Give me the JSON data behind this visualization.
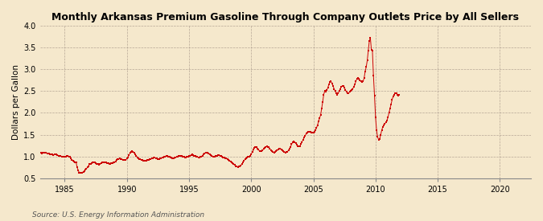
{
  "title": "Monthly Arkansas Premium Gasoline Through Company Outlets Price by All Sellers",
  "ylabel": "Dollars per Gallon",
  "source": "Source: U.S. Energy Information Administration",
  "background_color": "#f5e8cc",
  "line_color": "#cc0000",
  "ylim": [
    0.5,
    4.0
  ],
  "xlim_start": 1983.0,
  "xlim_end": 2022.5,
  "yticks": [
    0.5,
    1.0,
    1.5,
    2.0,
    2.5,
    3.0,
    3.5,
    4.0
  ],
  "xticks": [
    1985,
    1990,
    1995,
    2000,
    2005,
    2010,
    2015,
    2020
  ],
  "prices": [
    1.09,
    1.08,
    1.07,
    1.08,
    1.09,
    1.09,
    1.08,
    1.07,
    1.07,
    1.06,
    1.05,
    1.04,
    1.04,
    1.03,
    1.04,
    1.05,
    1.04,
    1.03,
    1.02,
    1.01,
    1.01,
    1.0,
    1.0,
    0.99,
    1.0,
    1.0,
    1.01,
    1.01,
    1.0,
    0.99,
    0.95,
    0.92,
    0.9,
    0.88,
    0.87,
    0.86,
    0.75,
    0.68,
    0.63,
    0.62,
    0.62,
    0.63,
    0.65,
    0.67,
    0.7,
    0.72,
    0.75,
    0.78,
    0.82,
    0.83,
    0.85,
    0.86,
    0.86,
    0.86,
    0.85,
    0.83,
    0.82,
    0.81,
    0.82,
    0.84,
    0.86,
    0.87,
    0.87,
    0.87,
    0.86,
    0.85,
    0.84,
    0.83,
    0.83,
    0.84,
    0.85,
    0.86,
    0.87,
    0.89,
    0.91,
    0.93,
    0.94,
    0.95,
    0.94,
    0.93,
    0.92,
    0.91,
    0.91,
    0.92,
    0.95,
    0.98,
    1.03,
    1.08,
    1.1,
    1.12,
    1.1,
    1.08,
    1.05,
    1.02,
    0.98,
    0.95,
    0.94,
    0.93,
    0.92,
    0.91,
    0.9,
    0.9,
    0.9,
    0.9,
    0.91,
    0.92,
    0.93,
    0.94,
    0.95,
    0.96,
    0.97,
    0.97,
    0.96,
    0.95,
    0.94,
    0.94,
    0.95,
    0.96,
    0.97,
    0.98,
    0.99,
    1.0,
    1.01,
    1.01,
    1.0,
    0.99,
    0.98,
    0.97,
    0.96,
    0.96,
    0.97,
    0.98,
    0.99,
    1.0,
    1.01,
    1.02,
    1.02,
    1.01,
    1.0,
    0.99,
    0.98,
    0.98,
    0.99,
    1.0,
    1.01,
    1.02,
    1.03,
    1.04,
    1.03,
    1.02,
    1.01,
    1.0,
    0.99,
    0.98,
    0.98,
    0.99,
    1.0,
    1.02,
    1.05,
    1.07,
    1.08,
    1.09,
    1.08,
    1.07,
    1.05,
    1.03,
    1.01,
    1.0,
    1.0,
    1.0,
    1.01,
    1.02,
    1.03,
    1.03,
    1.02,
    1.01,
    0.99,
    0.98,
    0.97,
    0.96,
    0.95,
    0.94,
    0.92,
    0.9,
    0.88,
    0.86,
    0.84,
    0.82,
    0.8,
    0.78,
    0.77,
    0.76,
    0.77,
    0.77,
    0.79,
    0.82,
    0.86,
    0.9,
    0.93,
    0.95,
    0.97,
    0.99,
    1.0,
    1.01,
    1.05,
    1.1,
    1.15,
    1.2,
    1.22,
    1.21,
    1.18,
    1.15,
    1.13,
    1.12,
    1.13,
    1.14,
    1.17,
    1.2,
    1.22,
    1.23,
    1.22,
    1.21,
    1.18,
    1.14,
    1.12,
    1.1,
    1.09,
    1.1,
    1.12,
    1.14,
    1.16,
    1.17,
    1.17,
    1.16,
    1.14,
    1.12,
    1.1,
    1.09,
    1.1,
    1.11,
    1.14,
    1.17,
    1.22,
    1.28,
    1.32,
    1.35,
    1.33,
    1.3,
    1.27,
    1.24,
    1.23,
    1.24,
    1.28,
    1.33,
    1.38,
    1.43,
    1.47,
    1.52,
    1.55,
    1.57,
    1.57,
    1.56,
    1.55,
    1.54,
    1.55,
    1.57,
    1.6,
    1.65,
    1.72,
    1.8,
    1.88,
    1.95,
    2.1,
    2.25,
    2.42,
    2.5,
    2.48,
    2.52,
    2.58,
    2.65,
    2.7,
    2.72,
    2.68,
    2.62,
    2.55,
    2.5,
    2.45,
    2.42,
    2.45,
    2.5,
    2.55,
    2.6,
    2.62,
    2.62,
    2.58,
    2.52,
    2.48,
    2.45,
    2.45,
    2.48,
    2.5,
    2.52,
    2.55,
    2.6,
    2.65,
    2.72,
    2.78,
    2.8,
    2.78,
    2.75,
    2.72,
    2.7,
    2.72,
    2.8,
    2.95,
    3.05,
    3.2,
    3.42,
    3.65,
    3.72,
    3.45,
    3.42,
    2.85,
    2.4,
    1.9,
    1.6,
    1.45,
    1.38,
    1.4,
    1.5,
    1.6,
    1.68,
    1.72,
    1.75,
    1.78,
    1.82,
    1.9,
    2.0,
    2.1,
    2.2,
    2.3,
    2.38,
    2.42,
    2.45,
    2.45,
    2.42,
    2.4,
    2.42
  ],
  "start_year": 1983,
  "start_month": 0
}
